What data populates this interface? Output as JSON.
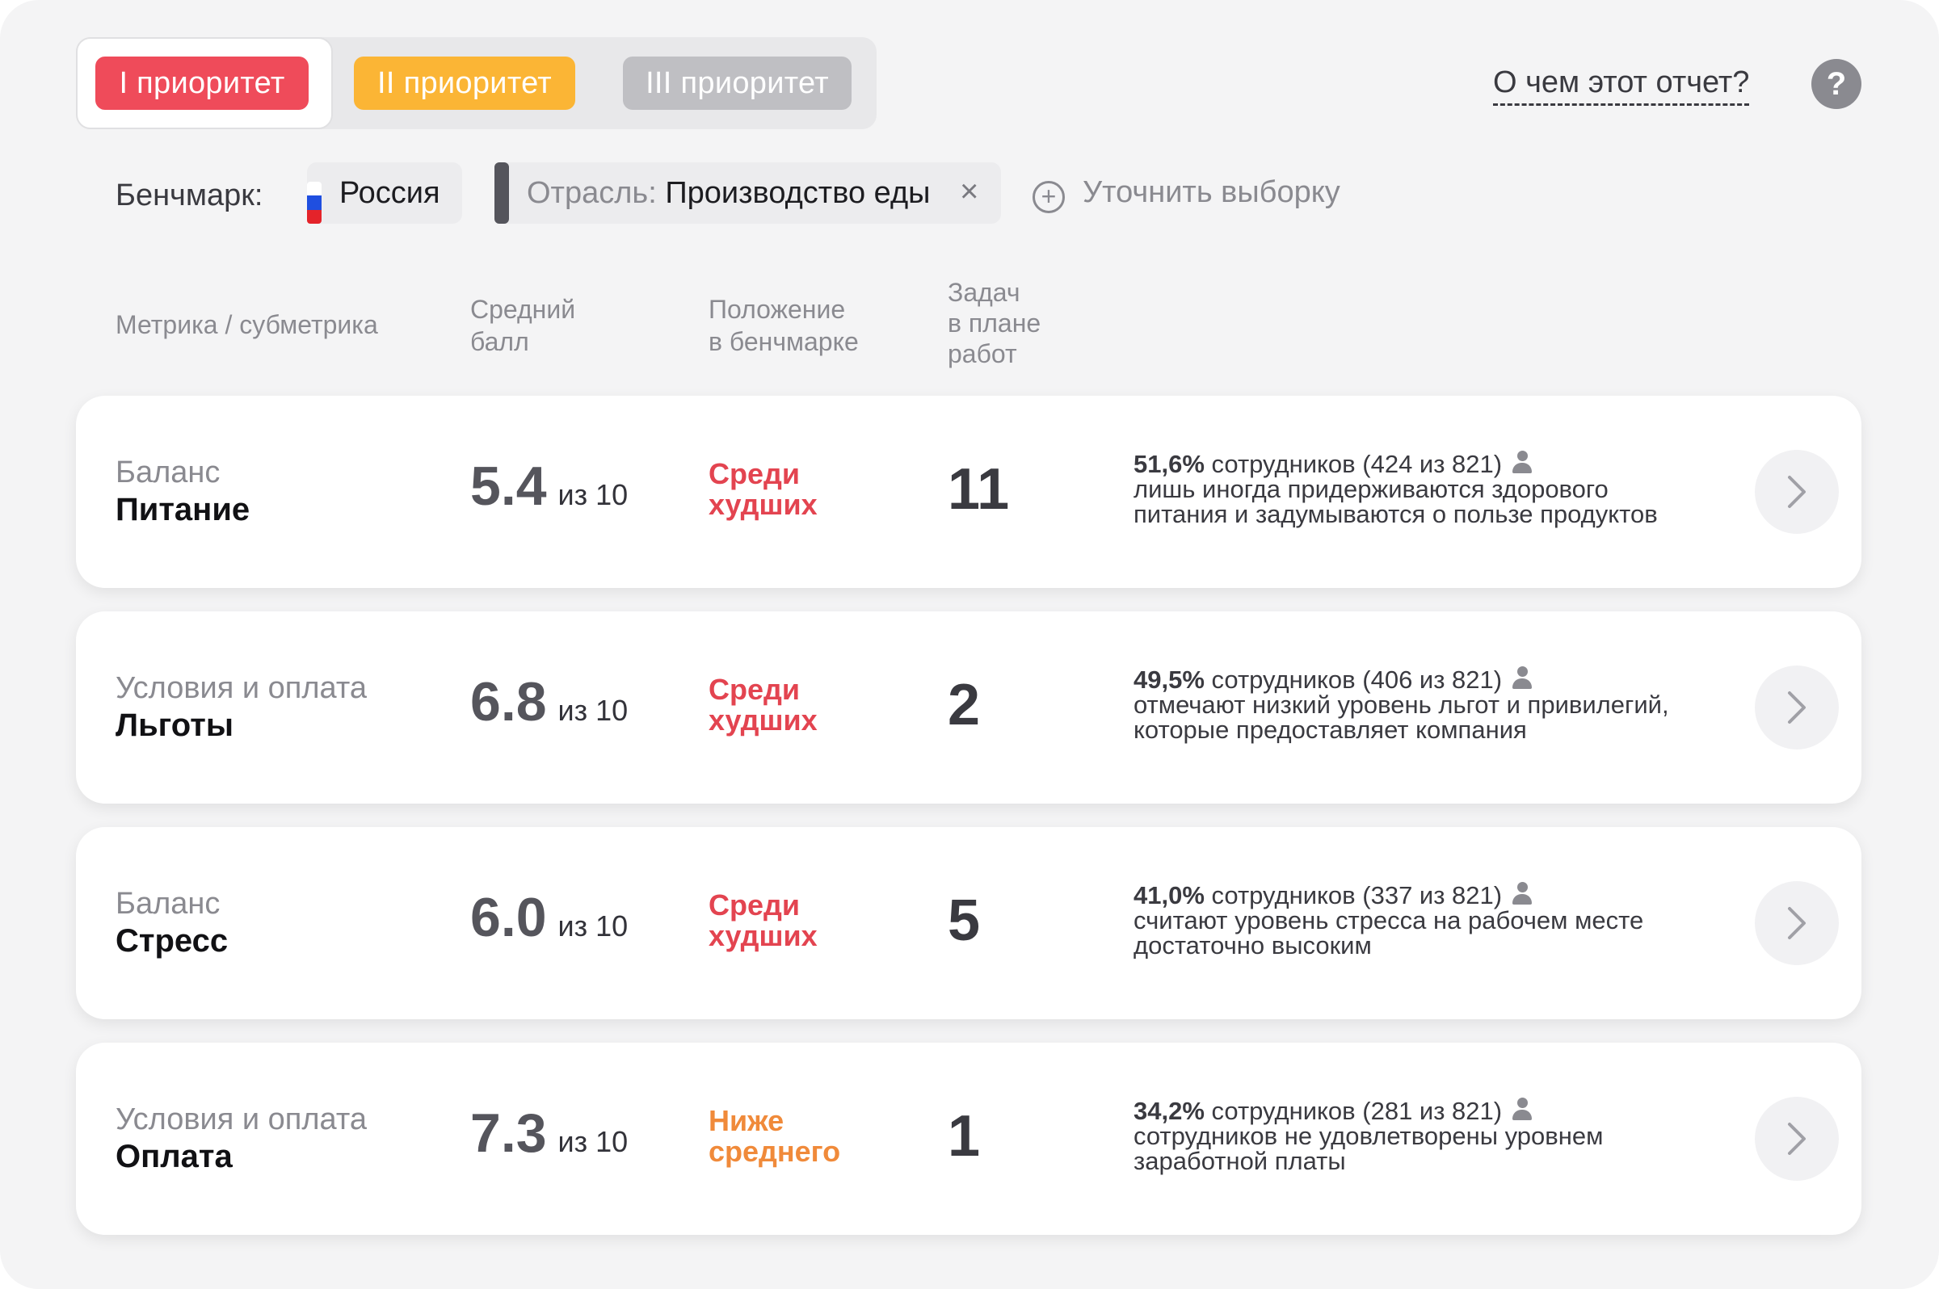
{
  "priority_tabs": [
    {
      "label": "I приоритет",
      "color": "#ef4b5a"
    },
    {
      "label": "II приоритет",
      "color": "#fbb535"
    },
    {
      "label": "III приоритет",
      "color": "#bfbfc3"
    }
  ],
  "header": {
    "about_link": "О чем этот отчет?",
    "help_icon": "?"
  },
  "benchmark": {
    "label": "Бенчмарк:",
    "country": "Россия",
    "industry_label": "Отрасль:",
    "industry_value": "Производство еды",
    "remove_symbol": "×",
    "refine_label": "Уточнить выборку"
  },
  "table_headers": {
    "metric": "Метрика / субметрика",
    "score_line1": "Средний",
    "score_line2": "балл",
    "position_line1": "Положение",
    "position_line2": "в бенчмарке",
    "tasks_line1": "Задач",
    "tasks_line2": "в плане",
    "tasks_line3": "работ"
  },
  "rows": [
    {
      "metric": "Баланс",
      "submetric": "Питание",
      "score": "5.4",
      "of": "из 10",
      "position_line1": "Среди",
      "position_line2": "худших",
      "tasks": "11",
      "pct": "51,6%",
      "employees": "сотрудников (424 из 821)",
      "text_line1": "лишь иногда придерживаются здорового",
      "text_line2": "питания и задумываются о пользе продуктов"
    },
    {
      "metric": "Условия и оплата",
      "submetric": "Льготы",
      "score": "6.8",
      "of": "из 10",
      "position_line1": "Среди",
      "position_line2": "худших",
      "tasks": "2",
      "pct": "49,5%",
      "employees": "сотрудников (406 из 821)",
      "text_line1": "отмечают низкий уровень льгот и привилегий,",
      "text_line2": "которые предоставляет компания"
    },
    {
      "metric": "Баланс",
      "submetric": "Стресс",
      "score": "6.0",
      "of": "из 10",
      "position_line1": "Среди",
      "position_line2": "худших",
      "tasks": "5",
      "pct": "41,0%",
      "employees": "сотрудников (337 из 821)",
      "text_line1": "считают уровень стресса на рабочем месте",
      "text_line2": "достаточно высоким"
    },
    {
      "metric": "Условия и оплата",
      "submetric": "Оплата",
      "score": "7.3",
      "of": "из 10",
      "position_line1": "Ниже",
      "position_line2": "среднего",
      "tasks": "1",
      "pct": "34,2%",
      "employees": "сотрудников (281 из 821)",
      "text_line1": "сотрудников не удовлетворены уровнем",
      "text_line2": "заработной платы"
    }
  ]
}
